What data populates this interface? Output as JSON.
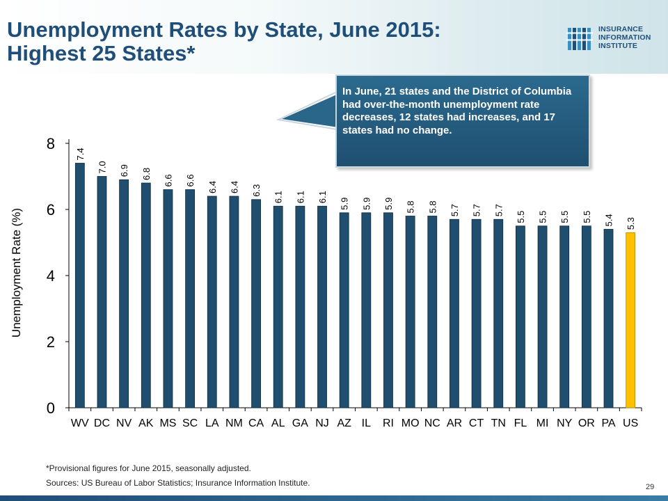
{
  "slide": {
    "title_line1": "Unemployment Rates by State, June 2015:",
    "title_line2": "Highest 25 States*",
    "logo_line1": "INSURANCE",
    "logo_line2": "INFORMATION",
    "logo_line3": "INSTITUTE",
    "callout": "In June, 21 states and the District of Columbia had over-the-month unemployment rate decreases, 12 states had increases, and 17 states had no change.",
    "footnote": "*Provisional figures for June 2015, seasonally adjusted.",
    "sources": "Sources: US Bureau of Labor Statistics; Insurance Information Institute.",
    "page_number": "29"
  },
  "colors": {
    "bar": "#1f4e6e",
    "highlight_bar": "#ffc000",
    "title": "#1f4e79"
  },
  "chart_data": {
    "type": "bar",
    "title": "",
    "xlabel": "",
    "ylabel": "Unemployment Rate (%)",
    "ylim": [
      0,
      8
    ],
    "yticks": [
      0,
      2,
      4,
      6,
      8
    ],
    "grid": false,
    "categories": [
      "WV",
      "DC",
      "NV",
      "AK",
      "MS",
      "SC",
      "LA",
      "NM",
      "CA",
      "AL",
      "GA",
      "NJ",
      "AZ",
      "IL",
      "RI",
      "MO",
      "NC",
      "AR",
      "CT",
      "TN",
      "FL",
      "MI",
      "NY",
      "OR",
      "PA",
      "US"
    ],
    "values": [
      7.4,
      7.0,
      6.9,
      6.8,
      6.6,
      6.6,
      6.4,
      6.4,
      6.3,
      6.1,
      6.1,
      6.1,
      5.9,
      5.9,
      5.9,
      5.8,
      5.8,
      5.7,
      5.7,
      5.7,
      5.5,
      5.5,
      5.5,
      5.5,
      5.4,
      5.3
    ],
    "value_labels": [
      "7.4",
      "7.0",
      "6.9",
      "6.8",
      "6.6",
      "6.6",
      "6.4",
      "6.4",
      "6.3",
      "6.1",
      "6.1",
      "6.1",
      "5.9",
      "5.9",
      "5.9",
      "5.8",
      "5.8",
      "5.7",
      "5.7",
      "5.7",
      "5.5",
      "5.5",
      "5.5",
      "5.5",
      "5.4",
      "5.3"
    ],
    "highlight_category": "US"
  }
}
